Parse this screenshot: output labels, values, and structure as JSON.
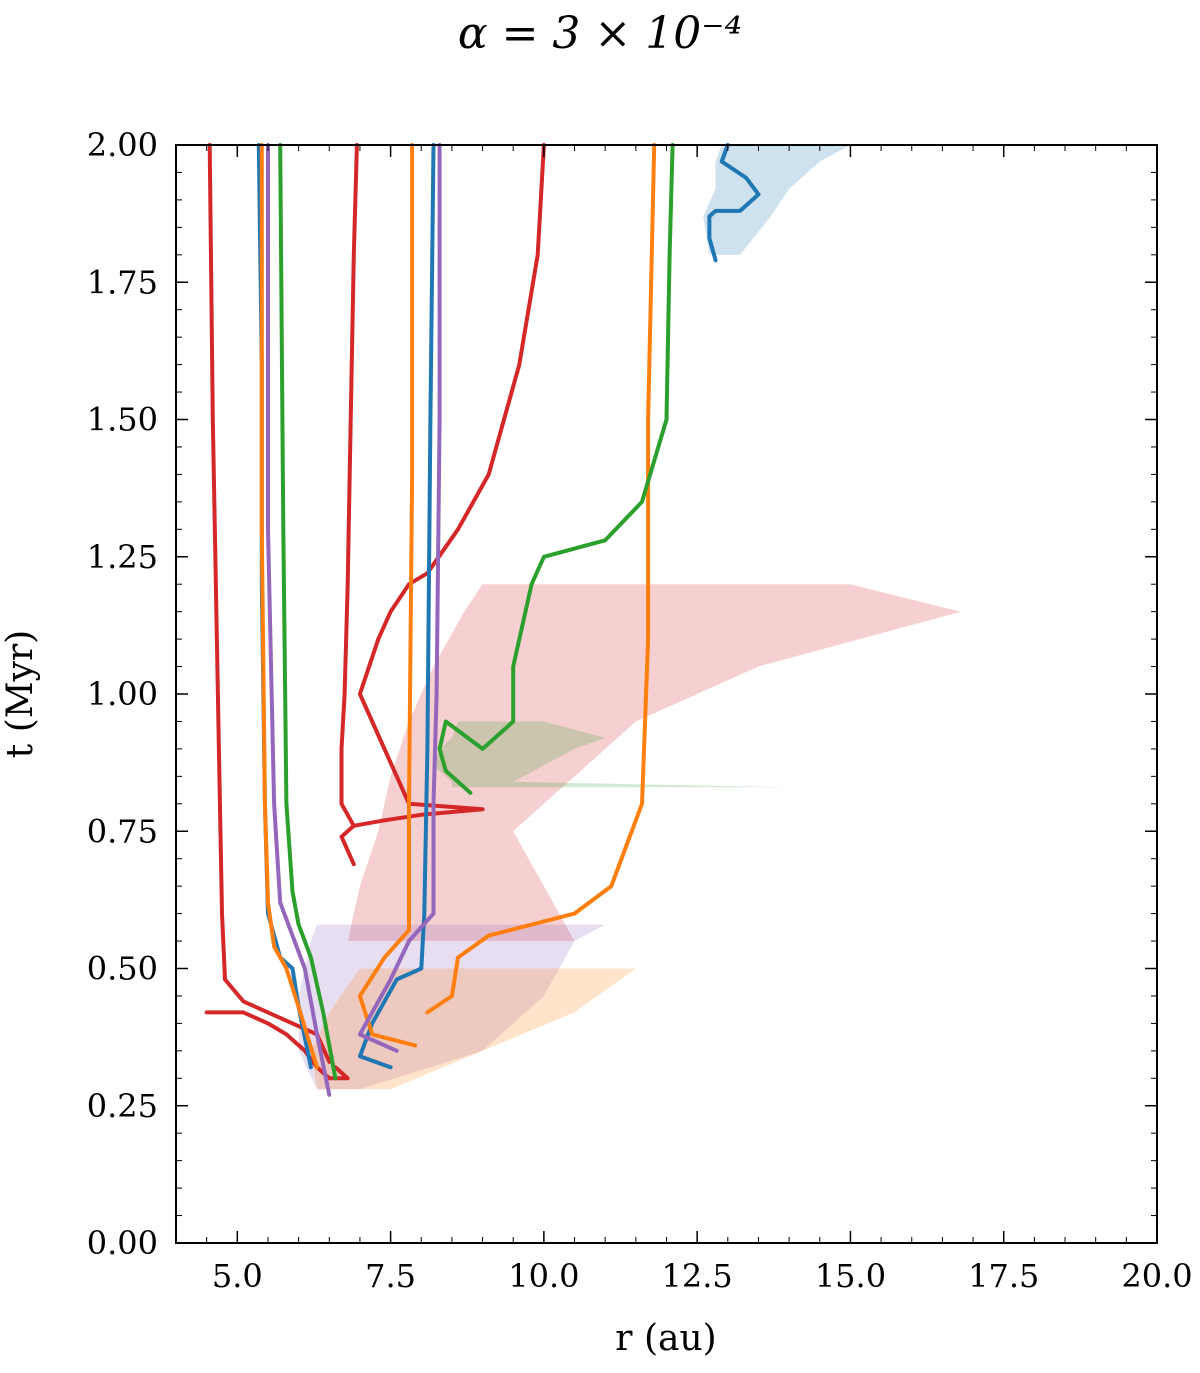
{
  "chart_data": {
    "type": "line",
    "title": "α = 3 × 10⁻⁴",
    "xlabel": "r (au)",
    "ylabel": "t (Myr)",
    "xlim": [
      4.0,
      20.0
    ],
    "ylim": [
      0.0,
      2.0
    ],
    "x_ticks": [
      "5.0",
      "7.5",
      "10.0",
      "12.5",
      "15.0",
      "17.5",
      "20.0"
    ],
    "y_ticks": [
      "0.00",
      "0.25",
      "0.50",
      "0.75",
      "1.00",
      "1.25",
      "1.50",
      "1.75",
      "2.00"
    ],
    "grid": false,
    "legend": "none",
    "colors": {
      "blue": "#1f77b4",
      "orange": "#ff7f0e",
      "green": "#2ca02c",
      "red": "#d62728",
      "purple": "#9467bd"
    },
    "series": [
      {
        "color": "blue",
        "x": [
          12.8,
          12.7,
          12.7,
          12.8,
          13.2,
          13.5,
          13.3,
          12.9,
          13.0
        ],
        "y": [
          1.79,
          1.83,
          1.87,
          1.88,
          1.88,
          1.91,
          1.94,
          1.97,
          2.0
        ]
      },
      {
        "color": "red",
        "x": [
          4.5,
          5.1,
          5.5,
          5.8,
          6.1,
          6.3,
          6.5,
          6.8,
          6.6
        ],
        "y": [
          0.42,
          0.42,
          0.4,
          0.38,
          0.35,
          0.32,
          0.3,
          0.3,
          0.32
        ]
      },
      {
        "color": "red",
        "x": [
          6.5,
          6.3,
          5.7,
          5.1,
          4.8,
          4.75,
          4.7,
          4.6,
          4.55
        ],
        "y": [
          0.33,
          0.38,
          0.41,
          0.44,
          0.48,
          0.6,
          0.9,
          1.5,
          2.0
        ]
      },
      {
        "color": "blue",
        "x": [
          6.2,
          6.0,
          5.9,
          5.7,
          5.5,
          5.45,
          5.4,
          5.4,
          5.35
        ],
        "y": [
          0.32,
          0.43,
          0.5,
          0.52,
          0.6,
          0.8,
          1.2,
          1.6,
          2.0
        ]
      },
      {
        "color": "orange",
        "x": [
          6.3,
          6.0,
          5.8,
          5.6,
          5.5,
          5.45,
          5.4,
          5.4
        ],
        "y": [
          0.32,
          0.43,
          0.5,
          0.54,
          0.62,
          0.8,
          1.3,
          2.0
        ]
      },
      {
        "color": "purple",
        "x": [
          6.5,
          6.3,
          6.1,
          5.9,
          5.7,
          5.6,
          5.5,
          5.5
        ],
        "y": [
          0.27,
          0.38,
          0.5,
          0.56,
          0.62,
          0.8,
          1.3,
          2.0
        ]
      },
      {
        "color": "green",
        "x": [
          6.6,
          6.4,
          6.2,
          6.0,
          5.9,
          5.8,
          5.75,
          5.7
        ],
        "y": [
          0.3,
          0.42,
          0.52,
          0.58,
          0.64,
          0.8,
          1.3,
          2.0
        ]
      },
      {
        "color": "red",
        "x": [
          6.9,
          6.7,
          6.9,
          7.4,
          8.0,
          9.0,
          7.8,
          7.0,
          7.3,
          7.5,
          7.8,
          8.1,
          8.6,
          9.1,
          9.6,
          9.9,
          10.0
        ],
        "y": [
          0.69,
          0.74,
          0.76,
          0.77,
          0.78,
          0.79,
          0.8,
          1.0,
          1.1,
          1.15,
          1.2,
          1.22,
          1.3,
          1.4,
          1.6,
          1.8,
          2.0
        ]
      },
      {
        "color": "red",
        "x": [
          6.9,
          6.7,
          6.7,
          6.75,
          6.8,
          6.85,
          6.9,
          6.95
        ],
        "y": [
          0.76,
          0.8,
          0.9,
          1.0,
          1.2,
          1.5,
          1.8,
          2.0
        ]
      },
      {
        "color": "blue",
        "x": [
          7.5,
          7.0,
          7.2,
          7.6,
          8.0,
          8.05,
          8.1,
          8.15,
          8.2
        ],
        "y": [
          0.32,
          0.34,
          0.4,
          0.48,
          0.5,
          0.6,
          0.9,
          1.5,
          2.0
        ]
      },
      {
        "color": "orange",
        "x": [
          7.9,
          7.2,
          7.0,
          7.4,
          7.8,
          7.8,
          7.85,
          7.85
        ],
        "y": [
          0.36,
          0.38,
          0.45,
          0.52,
          0.57,
          0.8,
          1.4,
          2.0
        ]
      },
      {
        "color": "purple",
        "x": [
          7.6,
          7.0,
          7.5,
          7.8,
          8.2,
          8.2,
          8.25,
          8.3,
          8.3
        ],
        "y": [
          0.35,
          0.38,
          0.48,
          0.55,
          0.6,
          0.8,
          1.0,
          1.5,
          2.0
        ]
      },
      {
        "color": "orange",
        "x": [
          8.1,
          8.5,
          8.6,
          9.1,
          10.5,
          11.1,
          11.6,
          11.7,
          11.7,
          11.8
        ],
        "y": [
          0.42,
          0.45,
          0.52,
          0.56,
          0.6,
          0.65,
          0.8,
          1.1,
          1.5,
          2.0
        ]
      },
      {
        "color": "green",
        "x": [
          8.8,
          8.4,
          8.3,
          8.4,
          9.0,
          9.5,
          9.5,
          9.8,
          10.0,
          11.0,
          11.6,
          12.0,
          12.05,
          12.1
        ],
        "y": [
          0.82,
          0.86,
          0.9,
          0.95,
          0.9,
          0.95,
          1.05,
          1.2,
          1.25,
          1.28,
          1.35,
          1.5,
          1.8,
          2.0
        ]
      }
    ],
    "shaded_regions": [
      {
        "color": "red",
        "y": [
          0.55,
          0.65,
          0.75,
          0.85,
          0.95,
          1.05,
          1.15,
          1.2
        ],
        "x_low": [
          6.8,
          7.0,
          7.3,
          7.5,
          7.8,
          8.2,
          8.7,
          9.0
        ],
        "x_high": [
          10.5,
          10.0,
          9.5,
          10.5,
          11.5,
          13.5,
          16.8,
          15.0
        ]
      },
      {
        "color": "green",
        "y": [
          0.83,
          0.84,
          0.87,
          0.9,
          0.92,
          0.95
        ],
        "x_low": [
          8.5,
          8.5,
          8.2,
          8.3,
          8.5,
          8.6
        ],
        "x_high": [
          14.0,
          9.5,
          10.0,
          10.5,
          11.0,
          10.0
        ]
      },
      {
        "color": "blue",
        "y": [
          1.8,
          1.87,
          1.92,
          1.97,
          2.0
        ],
        "x_low": [
          12.7,
          12.6,
          12.8,
          12.8,
          12.9
        ],
        "x_high": [
          13.2,
          13.7,
          14.0,
          14.5,
          15.0
        ]
      },
      {
        "color": "purple",
        "y": [
          0.28,
          0.35,
          0.45,
          0.55,
          0.58
        ],
        "x_low": [
          6.3,
          6.0,
          6.0,
          6.2,
          6.3
        ],
        "x_high": [
          7.0,
          9.0,
          10.0,
          10.5,
          11.0
        ]
      },
      {
        "color": "orange",
        "y": [
          0.28,
          0.35,
          0.42,
          0.5
        ],
        "x_low": [
          6.3,
          6.2,
          6.5,
          7.0
        ],
        "x_high": [
          7.5,
          9.0,
          10.5,
          11.5
        ]
      }
    ]
  }
}
